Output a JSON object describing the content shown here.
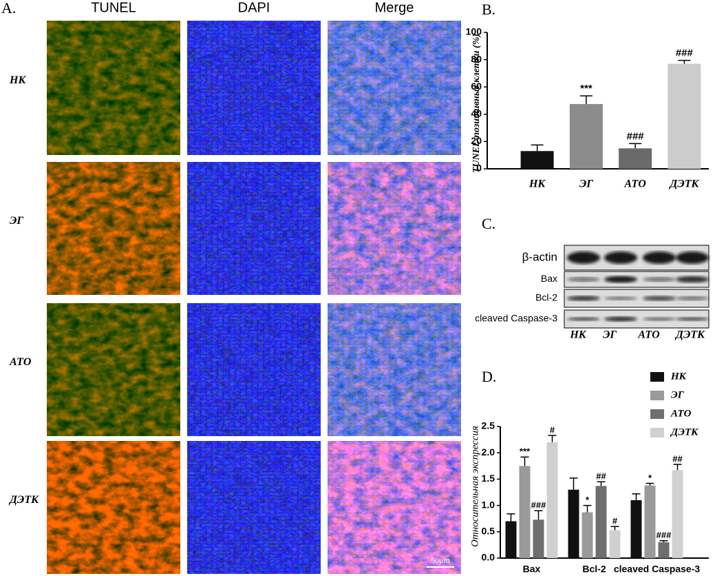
{
  "panel_a": {
    "label": "A.",
    "columns": [
      "TUNEL",
      "DAPI",
      "Merge"
    ],
    "rows": [
      "НК",
      "ЭГ",
      "АТО",
      "ДЭТК"
    ],
    "scale_bar": "50μm"
  },
  "panel_c": {
    "label": "C.",
    "bands": [
      "β-actin",
      "Bax",
      "Bcl-2",
      "cleaved Caspase-3"
    ],
    "lanes": [
      "НК",
      "ЭГ",
      "АТО",
      "ДЭТК"
    ]
  },
  "chart_data": [
    {
      "type": "bar",
      "label": "B.",
      "y_label": "TUNEL-позитивные клетки (%)",
      "categories": [
        "НК",
        "ЭГ",
        "АТО",
        "ДЭТК"
      ],
      "values": [
        13,
        47.5,
        15,
        77
      ],
      "errors": [
        4.5,
        6,
        3.5,
        2.5
      ],
      "annotations": [
        null,
        "***",
        "###",
        "###"
      ],
      "colors": [
        "#111111",
        "#8c8c8c",
        "#6a6a6a",
        "#cccccc"
      ],
      "ylim": [
        0,
        100
      ],
      "yticks": [
        0,
        20,
        40,
        60,
        80,
        100
      ]
    },
    {
      "type": "grouped-bar",
      "label": "D.",
      "y_label": "Относительная экспрессия",
      "categories": [
        "Bax",
        "Bcl-2",
        "cleaved Caspase-3"
      ],
      "series": [
        {
          "name": "НК",
          "color": "#111111",
          "values": [
            0.7,
            1.3,
            1.1
          ],
          "errors": [
            0.14,
            0.22,
            0.12
          ],
          "annotations": [
            null,
            null,
            null
          ]
        },
        {
          "name": "ЭГ",
          "color": "#9a9a9a",
          "values": [
            1.75,
            0.87,
            1.38
          ],
          "errors": [
            0.17,
            0.13,
            0.04
          ],
          "annotations": [
            "***",
            "*",
            "*"
          ]
        },
        {
          "name": "АТО",
          "color": "#6e6e6e",
          "values": [
            0.73,
            1.37,
            0.3
          ],
          "errors": [
            0.17,
            0.08,
            0.03
          ],
          "annotations": [
            "###",
            "##",
            "###"
          ]
        },
        {
          "name": "ДЭТК",
          "color": "#d0d0d0",
          "values": [
            2.2,
            0.53,
            1.67
          ],
          "errors": [
            0.13,
            0.07,
            0.11
          ],
          "annotations": [
            "#",
            "#",
            "##"
          ]
        }
      ],
      "ylim": [
        0,
        2.5
      ],
      "yticks": [
        {
          "value": 0,
          "label": "0.0"
        },
        0.5,
        {
          "value": 1,
          "label": "1.0"
        },
        1.5,
        {
          "value": 2,
          "label": "2.0"
        },
        2.5
      ]
    }
  ]
}
